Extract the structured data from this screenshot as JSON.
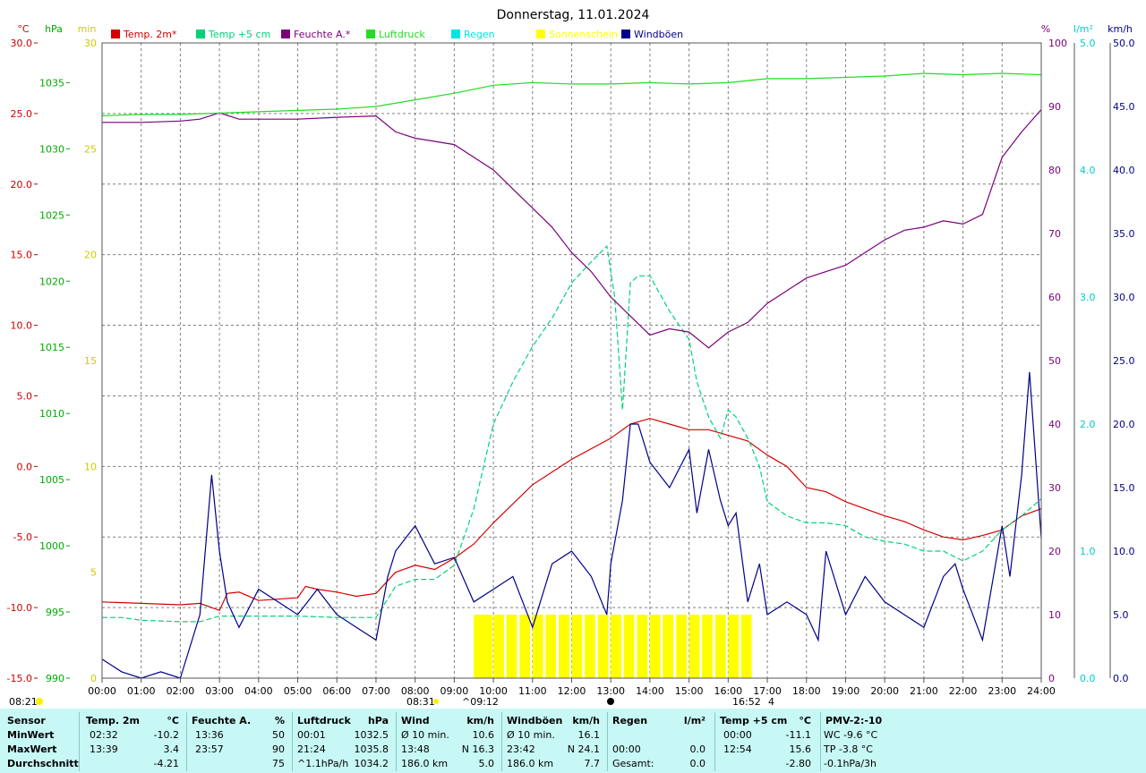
{
  "title": "Donnerstag, 11.01.2024",
  "colors": {
    "temp2m": "#d40000",
    "temp5cm": "#00d27a",
    "feuchte": "#7a007a",
    "luftdruck": "#22dd22",
    "regen": "#00e4e4",
    "sonnenschein": "#ffff00",
    "windboeen": "#000088",
    "grid": "#808080"
  },
  "axes": {
    "left_units": [
      "°C",
      "hPa",
      "min"
    ],
    "right_units": [
      "%",
      "l/m²",
      "km/h"
    ],
    "temp_ticks": [
      "30.0",
      "25.0",
      "20.0",
      "15.0",
      "10.0",
      "5.0",
      "0.0",
      "-5.0",
      "-10.0",
      "-15.0"
    ],
    "hpa_ticks": [
      "1035",
      "1030",
      "1025",
      "1020",
      "1015",
      "1010",
      "1005",
      "1000",
      "995",
      "990"
    ],
    "min_ticks": [
      "30",
      "25",
      "20",
      "15",
      "10",
      "5",
      "0"
    ],
    "pct_ticks": [
      "100",
      "90",
      "80",
      "70",
      "60",
      "50",
      "40",
      "30",
      "20",
      "10",
      "0"
    ],
    "rain_ticks": [
      "5.0",
      "4.0",
      "3.0",
      "2.0",
      "1.0",
      "0.0"
    ],
    "kmh_ticks": [
      "50.0",
      "45.0",
      "40.0",
      "35.0",
      "30.0",
      "25.0",
      "20.0",
      "15.0",
      "10.0",
      "5.0",
      "0.0"
    ],
    "x_ticks": [
      "00:00",
      "01:00",
      "02:00",
      "03:00",
      "04:00",
      "05:00",
      "06:00",
      "07:00",
      "08:00",
      "09:00",
      "10:00",
      "11:00",
      "12:00",
      "13:00",
      "14:00",
      "15:00",
      "16:00",
      "17:00",
      "18:00",
      "19:00",
      "20:00",
      "21:00",
      "22:00",
      "23:00",
      "24:00"
    ]
  },
  "legend": [
    {
      "label": "Temp. 2m*",
      "color": "#d40000"
    },
    {
      "label": "Temp +5 cm",
      "color": "#00d27a"
    },
    {
      "label": "Feuchte A.*",
      "color": "#7a007a"
    },
    {
      "label": "Luftdruck",
      "color": "#22dd22"
    },
    {
      "label": "Regen",
      "color": "#00e4e4"
    },
    {
      "label": "Sonnenschein",
      "color": "#ffff00"
    },
    {
      "label": "Windböen",
      "color": "#000088"
    }
  ],
  "sun_labels": {
    "moonrise": "08:21",
    "sunrise": "08:31",
    "sun_start": "09:12",
    "sun_end": "16:52",
    "sun_end_value": "4"
  },
  "chart_data": {
    "type": "line",
    "title": "Donnerstag, 11.01.2024",
    "x_unit": "hour",
    "xlim": [
      0,
      24
    ],
    "series": [
      {
        "name": "Temp. 2m*",
        "axis": "°C",
        "ylim": [
          -15,
          30
        ],
        "x": [
          0,
          1,
          2,
          2.5,
          3,
          3.2,
          3.5,
          4,
          5,
          5.2,
          5.5,
          6,
          6.5,
          7,
          7.5,
          8,
          8.5,
          9,
          9.5,
          10,
          11,
          12,
          13,
          13.5,
          14,
          14.5,
          15,
          15.5,
          16,
          16.5,
          17,
          17.5,
          18,
          18.5,
          19,
          19.5,
          20,
          20.5,
          21,
          21.5,
          22,
          22.5,
          23,
          23.5,
          24
        ],
        "y": [
          -9.6,
          -9.7,
          -9.8,
          -9.7,
          -10.2,
          -9.0,
          -8.9,
          -9.5,
          -9.3,
          -8.5,
          -8.7,
          -8.9,
          -9.2,
          -9.0,
          -7.5,
          -7.0,
          -7.3,
          -6.5,
          -5.5,
          -4.0,
          -1.3,
          0.5,
          2.0,
          3.0,
          3.4,
          3.0,
          2.6,
          2.6,
          2.2,
          1.8,
          0.8,
          0.0,
          -1.5,
          -1.8,
          -2.5,
          -3.0,
          -3.5,
          -3.9,
          -4.5,
          -5.0,
          -5.2,
          -4.9,
          -4.5,
          -3.5,
          -3.0
        ]
      },
      {
        "name": "Temp +5 cm",
        "axis": "°C",
        "ylim": [
          -15,
          30
        ],
        "x": [
          0,
          0.5,
          1,
          2,
          2.5,
          3,
          3.5,
          4,
          5,
          6,
          7,
          7.5,
          8,
          8.5,
          9,
          9.5,
          10,
          10.5,
          11,
          11.5,
          12,
          12.5,
          12.9,
          13.1,
          13.3,
          13.5,
          13.7,
          14,
          14.5,
          15,
          15.2,
          15.5,
          15.8,
          16,
          16.2,
          16.5,
          16.8,
          17,
          17.5,
          18,
          18.5,
          19,
          19.5,
          20,
          20.5,
          21,
          21.5,
          22,
          22.5,
          23,
          23.5,
          24
        ],
        "y": [
          -10.7,
          -10.7,
          -10.9,
          -11.0,
          -11.0,
          -10.6,
          -10.6,
          -10.6,
          -10.6,
          -10.7,
          -10.7,
          -8.5,
          -8.0,
          -8.0,
          -7.0,
          -3.0,
          3.0,
          6.0,
          8.5,
          10.5,
          13.0,
          14.5,
          15.6,
          12.0,
          4.0,
          13.0,
          13.5,
          13.5,
          11.0,
          9.0,
          6.0,
          3.5,
          2.0,
          4.0,
          3.5,
          2.0,
          0.0,
          -2.5,
          -3.5,
          -4.0,
          -4.0,
          -4.2,
          -5.0,
          -5.3,
          -5.5,
          -6.0,
          -6.0,
          -6.7,
          -6.0,
          -4.5,
          -3.5,
          -2.3
        ]
      },
      {
        "name": "Feuchte A.*",
        "axis": "%",
        "ylim": [
          0,
          100
        ],
        "x": [
          0,
          1,
          2,
          2.5,
          3,
          3.5,
          4,
          5,
          6,
          7,
          7.5,
          8,
          8.5,
          9,
          9.5,
          10,
          10.5,
          11,
          11.5,
          12,
          12.5,
          13,
          13.5,
          14,
          14.5,
          15,
          15.5,
          16,
          16.5,
          17,
          17.5,
          18,
          18.5,
          19,
          19.5,
          20,
          20.5,
          21,
          21.5,
          22,
          22.5,
          23,
          23.5,
          24
        ],
        "y": [
          87.5,
          87.5,
          87.7,
          88.0,
          89.0,
          88.0,
          88.0,
          88.0,
          88.3,
          88.5,
          86.0,
          85.0,
          84.5,
          84.0,
          82.0,
          80.0,
          77.0,
          74.0,
          71.0,
          67.0,
          64.0,
          60.0,
          57.0,
          54.0,
          55.0,
          54.5,
          52.0,
          54.5,
          56.0,
          59.0,
          61.0,
          63.0,
          64.0,
          65.0,
          67.0,
          69.0,
          70.5,
          71.0,
          72.0,
          71.5,
          73.0,
          82.0,
          86.0,
          89.5
        ]
      },
      {
        "name": "Luftdruck",
        "axis": "hPa",
        "ylim": [
          990,
          1038
        ],
        "x": [
          0,
          1,
          2,
          3,
          4,
          5,
          6,
          7,
          8,
          9,
          10,
          11,
          12,
          13,
          14,
          15,
          16,
          17,
          18,
          19,
          20,
          21,
          22,
          23,
          24
        ],
        "y": [
          1032.5,
          1032.6,
          1032.6,
          1032.7,
          1032.8,
          1032.9,
          1033.0,
          1033.2,
          1033.7,
          1034.2,
          1034.8,
          1035.0,
          1034.9,
          1034.9,
          1035.0,
          1034.9,
          1035.0,
          1035.3,
          1035.3,
          1035.4,
          1035.5,
          1035.7,
          1035.6,
          1035.7,
          1035.6
        ]
      },
      {
        "name": "Windböen",
        "axis": "km/h",
        "ylim": [
          0,
          50
        ],
        "x": [
          0,
          0.5,
          1,
          1.5,
          2,
          2.5,
          2.8,
          3,
          3.2,
          3.5,
          4,
          4.5,
          5,
          5.5,
          6,
          6.5,
          7,
          7.3,
          7.5,
          8,
          8.5,
          9,
          9.5,
          10,
          10.5,
          11,
          11.5,
          12,
          12.5,
          12.9,
          13,
          13.3,
          13.5,
          13.7,
          14,
          14.5,
          15,
          15.2,
          15.5,
          15.8,
          16,
          16.2,
          16.5,
          16.8,
          17,
          17.5,
          18,
          18.3,
          18.5,
          19,
          19.5,
          20,
          20.5,
          21,
          21.5,
          21.8,
          22,
          22.5,
          23,
          23.2,
          23.5,
          23.7,
          24
        ],
        "y": [
          1.5,
          0.5,
          0.0,
          0.5,
          0.0,
          5.0,
          16.0,
          10.0,
          6.0,
          4.0,
          7.0,
          6.0,
          5.0,
          7.0,
          5.0,
          4.0,
          3.0,
          8.0,
          10.0,
          12.0,
          9.0,
          9.5,
          6.0,
          7.0,
          8.0,
          4.0,
          9.0,
          10.0,
          8.0,
          5.0,
          9.0,
          14.0,
          20.0,
          20.0,
          17.0,
          15.0,
          18.0,
          13.0,
          18.0,
          14.0,
          12.0,
          13.0,
          6.0,
          9.0,
          5.0,
          6.0,
          5.0,
          3.0,
          10.0,
          5.0,
          8.0,
          6.0,
          5.0,
          4.0,
          8.0,
          9.0,
          7.0,
          3.0,
          12.0,
          8.0,
          16.0,
          24.1,
          11.0
        ]
      },
      {
        "name": "Sonnenschein",
        "axis": "min",
        "type": "bar",
        "ylim": [
          0,
          30
        ],
        "x_start": [
          9.5,
          9.7,
          10.0,
          10.33,
          10.67,
          11.0,
          11.33,
          11.67,
          12.0,
          12.33,
          12.67,
          13.0,
          13.33,
          13.67,
          14.0,
          14.33,
          14.67,
          15.0,
          15.33,
          15.67,
          16.0,
          16.33
        ],
        "y": [
          3,
          3,
          3,
          3,
          3,
          3,
          3,
          3,
          3,
          3,
          3,
          3,
          3,
          3,
          3,
          3,
          3,
          3,
          3,
          3,
          3,
          3
        ]
      }
    ]
  },
  "stats": {
    "headers": {
      "sensor": "Sensor",
      "temp2m": "Temp. 2m",
      "temp2m_unit": "°C",
      "feuchte": "Feuchte A.",
      "feuchte_unit": "%",
      "luftdruck": "Luftdruck",
      "luftdruck_unit": "hPa",
      "wind": "Wind",
      "wind_unit": "km/h",
      "windboeen": "Windböen",
      "windboeen_unit": "km/h",
      "regen": "Regen",
      "regen_unit": "l/m²",
      "temp5": "Temp +5 cm",
      "temp5_unit": "°C",
      "pmv": "PMV-2:-10"
    },
    "rows": [
      {
        "label": "MinWert",
        "t2_time": "02:32",
        "t2_val": "-10.2",
        "f_time": "13:36",
        "f_val": "50",
        "p_time": "00:01",
        "p_val": "1032.5",
        "w_label": "Ø 10 min.",
        "w_val": "10.6",
        "b_label": "Ø 10 min.",
        "b_val": "16.1",
        "r_time": "",
        "r_val": "",
        "t5_time": "00:00",
        "t5_val": "-11.1",
        "pmv": "WC -9.6 °C"
      },
      {
        "label": "MaxWert",
        "t2_time": "13:39",
        "t2_val": "3.4",
        "f_time": "23:57",
        "f_val": "90",
        "p_time": "21:24",
        "p_val": "1035.8",
        "w_label": "13:48",
        "w_val": "N 16.3",
        "b_label": "23:42",
        "b_val": "N 24.1",
        "r_time": "00:00",
        "r_val": "0.0",
        "t5_time": "12:54",
        "t5_val": "15.6",
        "pmv": "TP -3.8 °C"
      },
      {
        "label": "Durchschnitt",
        "t2_time": "",
        "t2_val": "-4.21",
        "f_time": "",
        "f_val": "75",
        "p_time": "^1.1hPa/h",
        "p_val": "1034.2",
        "w_label": "186.0 km",
        "w_val": "5.0",
        "b_label": "186.0 km",
        "b_val": "7.7",
        "r_time": "Gesamt:",
        "r_val": "0.0",
        "t5_time": "",
        "t5_val": "-2.80",
        "pmv": "-0.1hPa/3h"
      }
    ]
  }
}
